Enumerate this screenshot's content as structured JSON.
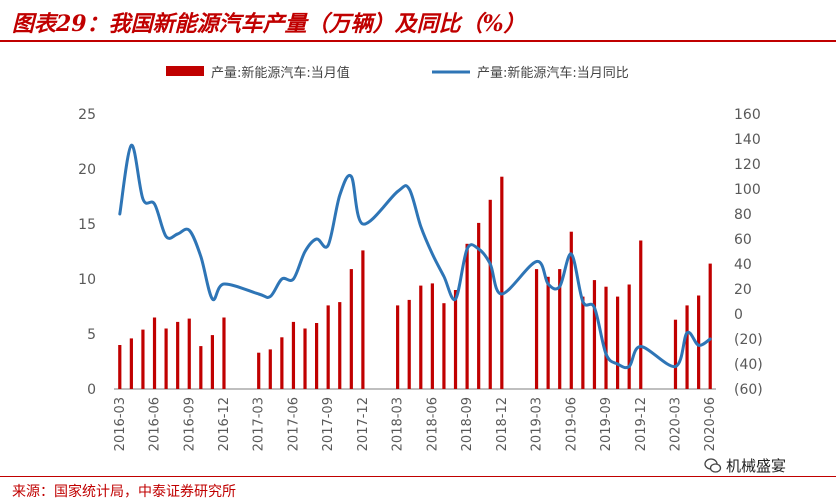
{
  "page": {
    "title": "图表29：我国新能源汽车产量（万辆）及同比（%）",
    "source": "来源：国家统计局，中泰证券研究所",
    "watermark": "机械盛宴"
  },
  "colors": {
    "bar": "#c00000",
    "line": "#2e75b6",
    "title": "#c00000"
  },
  "chart_data": {
    "type": "bar",
    "legend": [
      "产量:新能源汽车:当月值",
      "产量:新能源汽车:当月同比"
    ],
    "legend_position": "top",
    "grid": false,
    "y_left": {
      "min": 0,
      "max": 25,
      "ticks": [
        "0",
        "5",
        "10",
        "15",
        "20",
        "25"
      ]
    },
    "y_right": {
      "min": -60,
      "max": 160,
      "ticks": [
        "(60)",
        "(40)",
        "(20)",
        "0",
        "20",
        "40",
        "60",
        "80",
        "100",
        "120",
        "140",
        "160"
      ]
    },
    "x_tick_labels": [
      "2016-03",
      "2016-06",
      "2016-09",
      "2016-12",
      "2017-03",
      "2017-06",
      "2017-09",
      "2017-12",
      "2018-03",
      "2018-06",
      "2018-09",
      "2018-12",
      "2019-03",
      "2019-06",
      "2019-09",
      "2019-12",
      "2020-03",
      "2020-06"
    ],
    "categories": [
      "2016-03",
      "2016-04",
      "2016-05",
      "2016-06",
      "2016-07",
      "2016-08",
      "2016-09",
      "2016-10",
      "2016-11",
      "2016-12",
      "2017-01",
      "2017-02",
      "2017-03",
      "2017-04",
      "2017-05",
      "2017-06",
      "2017-07",
      "2017-08",
      "2017-09",
      "2017-10",
      "2017-11",
      "2017-12",
      "2018-01",
      "2018-02",
      "2018-03",
      "2018-04",
      "2018-05",
      "2018-06",
      "2018-07",
      "2018-08",
      "2018-09",
      "2018-10",
      "2018-11",
      "2018-12",
      "2019-01",
      "2019-02",
      "2019-03",
      "2019-04",
      "2019-05",
      "2019-06",
      "2019-07",
      "2019-08",
      "2019-09",
      "2019-10",
      "2019-11",
      "2019-12",
      "2020-01",
      "2020-02",
      "2020-03",
      "2020-04",
      "2020-05",
      "2020-06"
    ],
    "series": [
      {
        "name": "产量:新能源汽车:当月值",
        "kind": "bar",
        "axis": "left",
        "values": [
          4.0,
          4.6,
          5.4,
          6.5,
          5.5,
          6.1,
          6.4,
          3.9,
          4.9,
          6.5,
          null,
          null,
          3.3,
          3.6,
          4.7,
          6.1,
          5.5,
          6.0,
          7.6,
          7.9,
          10.9,
          12.6,
          null,
          null,
          7.6,
          8.1,
          9.4,
          9.6,
          7.8,
          9.0,
          13.2,
          15.1,
          17.2,
          19.3,
          null,
          null,
          10.9,
          10.2,
          10.9,
          14.3,
          8.4,
          9.9,
          9.3,
          8.4,
          9.5,
          13.5,
          null,
          null,
          6.3,
          7.6,
          8.5,
          11.4
        ]
      },
      {
        "name": "产量:新能源汽车:当月同比",
        "kind": "line",
        "axis": "right",
        "values": [
          80,
          135,
          92,
          88,
          62,
          64,
          67,
          46,
          12,
          24,
          null,
          null,
          16,
          14,
          28,
          28,
          50,
          60,
          55,
          95,
          110,
          72,
          null,
          null,
          98,
          100,
          70,
          48,
          30,
          12,
          52,
          52,
          40,
          16,
          null,
          null,
          42,
          24,
          22,
          48,
          10,
          5,
          -32,
          -40,
          -42,
          -26,
          null,
          null,
          -42,
          -15,
          -25,
          -20
        ]
      }
    ]
  }
}
